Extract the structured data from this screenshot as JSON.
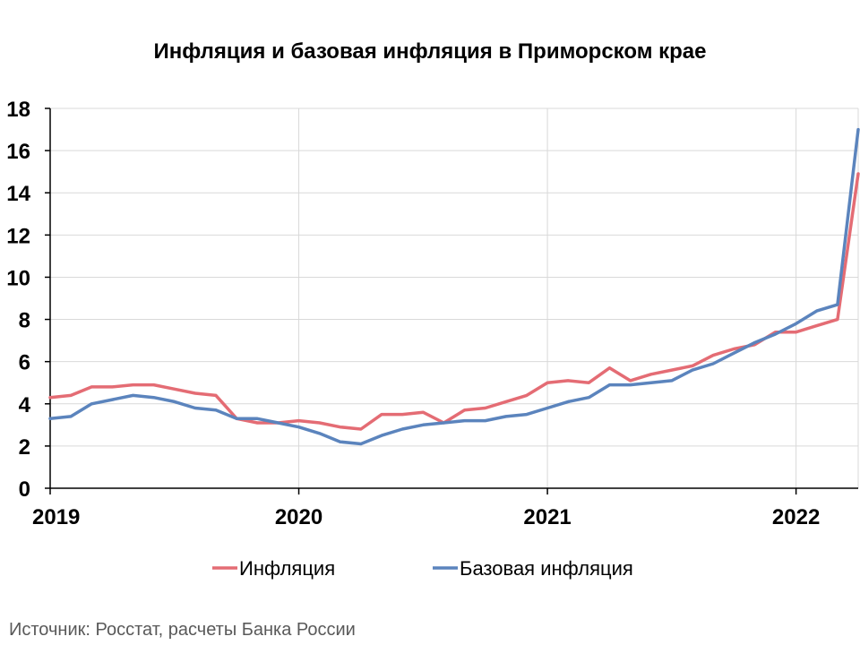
{
  "chart_data": {
    "type": "line",
    "title": "Инфляция и базовая инфляция в Приморском крае",
    "xlabel": "",
    "ylabel": "",
    "ylim": [
      0,
      18
    ],
    "yticks": [
      0,
      2,
      4,
      6,
      8,
      10,
      12,
      14,
      16,
      18
    ],
    "x_start": "2019-01",
    "x_end": "2022-04",
    "xtick_labels": [
      "2019",
      "2020",
      "2021",
      "2022"
    ],
    "grid": "on",
    "legend": "bottom",
    "x": [
      "2019-01",
      "2019-02",
      "2019-03",
      "2019-04",
      "2019-05",
      "2019-06",
      "2019-07",
      "2019-08",
      "2019-09",
      "2019-10",
      "2019-11",
      "2019-12",
      "2020-01",
      "2020-02",
      "2020-03",
      "2020-04",
      "2020-05",
      "2020-06",
      "2020-07",
      "2020-08",
      "2020-09",
      "2020-10",
      "2020-11",
      "2020-12",
      "2021-01",
      "2021-02",
      "2021-03",
      "2021-04",
      "2021-05",
      "2021-06",
      "2021-07",
      "2021-08",
      "2021-09",
      "2021-10",
      "2021-11",
      "2021-12",
      "2022-01",
      "2022-02",
      "2022-03",
      "2022-04"
    ],
    "series": [
      {
        "name": "Инфляция",
        "color": "#E46C74",
        "values": [
          4.3,
          4.4,
          4.8,
          4.8,
          4.9,
          4.9,
          4.7,
          4.5,
          4.4,
          3.3,
          3.1,
          3.1,
          3.2,
          3.1,
          2.9,
          2.8,
          3.5,
          3.5,
          3.6,
          3.1,
          3.7,
          3.8,
          4.1,
          4.4,
          5.0,
          5.1,
          5.0,
          5.7,
          5.1,
          5.4,
          5.6,
          5.8,
          6.3,
          6.6,
          6.8,
          7.4,
          7.4,
          7.7,
          8.0,
          14.9
        ]
      },
      {
        "name": "Базовая инфляция",
        "color": "#5B84BD",
        "values": [
          3.3,
          3.4,
          4.0,
          4.2,
          4.4,
          4.3,
          4.1,
          3.8,
          3.7,
          3.3,
          3.3,
          3.1,
          2.9,
          2.6,
          2.2,
          2.1,
          2.5,
          2.8,
          3.0,
          3.1,
          3.2,
          3.2,
          3.4,
          3.5,
          3.8,
          4.1,
          4.3,
          4.9,
          4.9,
          5.0,
          5.1,
          5.6,
          5.9,
          6.4,
          6.9,
          7.3,
          7.8,
          8.4,
          8.7,
          17.0
        ]
      }
    ]
  },
  "source": "Источник: Росстат, расчеты Банка России"
}
